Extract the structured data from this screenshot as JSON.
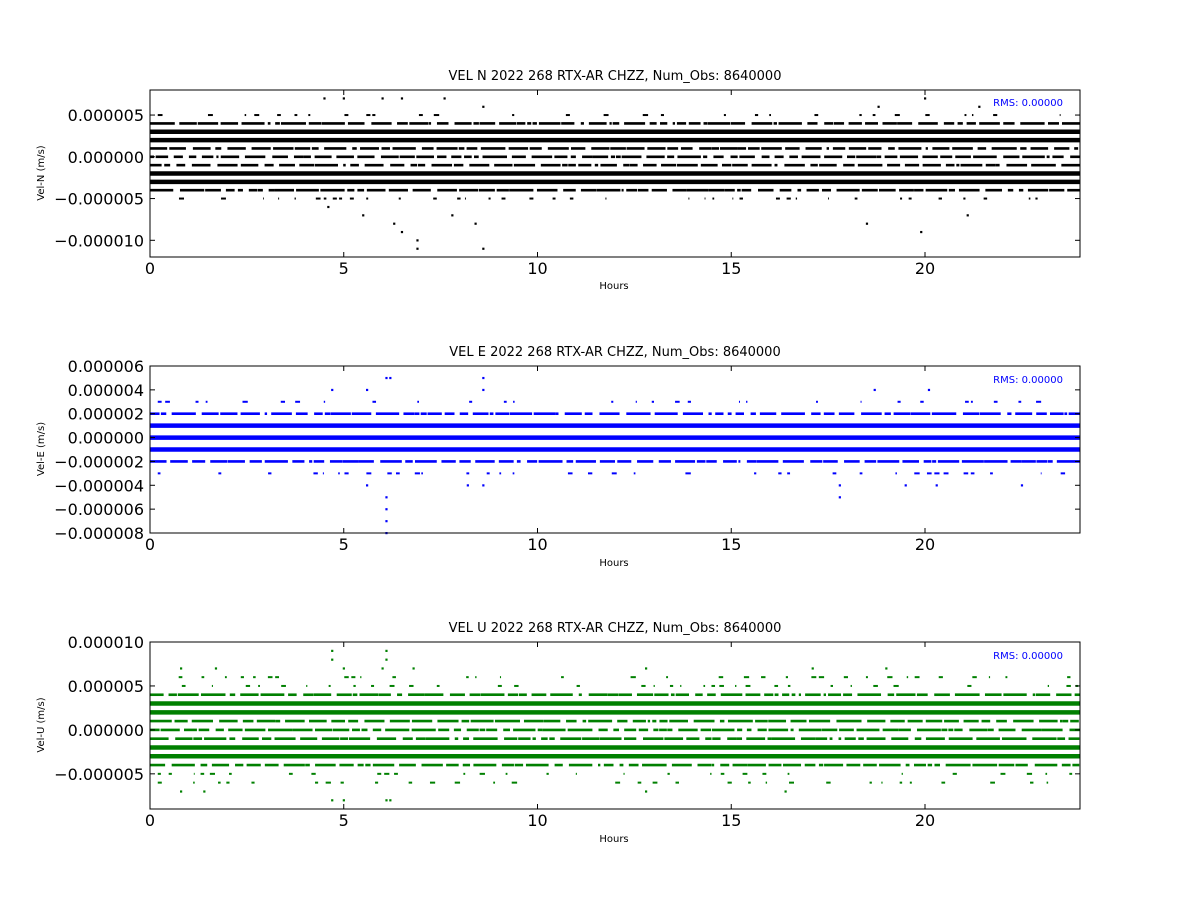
{
  "chart_data": [
    {
      "type": "scatter",
      "title": "VEL N 2022 268 RTX-AR  CHZZ, Num_Obs: 8640000",
      "xlabel": "Hours",
      "ylabel": "Vel-N (m/s)",
      "xlim": [
        0,
        24
      ],
      "ylim": [
        -1.2e-05,
        8e-06
      ],
      "xticks": [
        0,
        5,
        10,
        15,
        20
      ],
      "xtick_labels": [
        "0",
        "5",
        "10",
        "15",
        "20"
      ],
      "yticks": [
        -1e-05,
        -5e-06,
        0,
        5e-06
      ],
      "ytick_labels": [
        "−0.000010",
        "−0.000005",
        "0.000000",
        "0.000005"
      ],
      "rms_label": "RMS:  0.00000",
      "color": "#000000",
      "grid": false,
      "dense_levels": [
        3e-06,
        2e-06,
        -2e-06,
        -3e-06
      ],
      "medium_levels": [
        1e-06,
        0,
        -1e-06,
        4e-06,
        -4e-06
      ],
      "sparse_levels": [
        5e-06,
        -5e-06
      ],
      "outliers": [
        {
          "x": 4.5,
          "y": 7e-06
        },
        {
          "x": 5.0,
          "y": 7e-06
        },
        {
          "x": 6.0,
          "y": 7e-06
        },
        {
          "x": 6.5,
          "y": 7e-06
        },
        {
          "x": 7.6,
          "y": 7e-06
        },
        {
          "x": 20.0,
          "y": 7e-06
        },
        {
          "x": 8.6,
          "y": 6e-06
        },
        {
          "x": 18.8,
          "y": 6e-06
        },
        {
          "x": 21.4,
          "y": 6e-06
        },
        {
          "x": 4.6,
          "y": -6e-06
        },
        {
          "x": 5.5,
          "y": -7e-06
        },
        {
          "x": 6.3,
          "y": -8e-06
        },
        {
          "x": 6.5,
          "y": -9e-06
        },
        {
          "x": 6.9,
          "y": -1e-05
        },
        {
          "x": 6.9,
          "y": -1.1e-05
        },
        {
          "x": 8.6,
          "y": -1.1e-05
        },
        {
          "x": 8.4,
          "y": -8e-06
        },
        {
          "x": 18.5,
          "y": -8e-06
        },
        {
          "x": 19.9,
          "y": -9e-06
        },
        {
          "x": 21.1,
          "y": -7e-06
        },
        {
          "x": 7.8,
          "y": -7e-06
        }
      ]
    },
    {
      "type": "scatter",
      "title": "VEL E 2022 268 RTX-AR  CHZZ, Num_Obs: 8640000",
      "xlabel": "Hours",
      "ylabel": "Vel-E (m/s)",
      "xlim": [
        0,
        24
      ],
      "ylim": [
        -8e-06,
        6e-06
      ],
      "xticks": [
        0,
        5,
        10,
        15,
        20
      ],
      "xtick_labels": [
        "0",
        "5",
        "10",
        "15",
        "20"
      ],
      "yticks": [
        -8e-06,
        -6e-06,
        -4e-06,
        -2e-06,
        0,
        2e-06,
        4e-06,
        6e-06
      ],
      "ytick_labels": [
        "−0.000008",
        "−0.000006",
        "−0.000004",
        "−0.000002",
        "0.000000",
        "0.000002",
        "0.000004",
        "0.000006"
      ],
      "rms_label": "RMS:  0.00000",
      "color": "#0000ff",
      "grid": false,
      "dense_levels": [
        1e-06,
        0,
        -1e-06
      ],
      "medium_levels": [
        2e-06,
        -2e-06
      ],
      "sparse_levels": [
        3e-06,
        -3e-06
      ],
      "outliers": [
        {
          "x": 4.7,
          "y": 4e-06
        },
        {
          "x": 5.6,
          "y": 4e-06
        },
        {
          "x": 6.1,
          "y": 5e-06
        },
        {
          "x": 6.2,
          "y": 5e-06
        },
        {
          "x": 8.6,
          "y": 5e-06
        },
        {
          "x": 8.6,
          "y": 4e-06
        },
        {
          "x": 18.7,
          "y": 4e-06
        },
        {
          "x": 20.1,
          "y": 4e-06
        },
        {
          "x": 6.1,
          "y": -5e-06
        },
        {
          "x": 6.1,
          "y": -6e-06
        },
        {
          "x": 6.1,
          "y": -7e-06
        },
        {
          "x": 6.1,
          "y": -8e-06
        },
        {
          "x": 5.6,
          "y": -4e-06
        },
        {
          "x": 8.2,
          "y": -4e-06
        },
        {
          "x": 8.6,
          "y": -4e-06
        },
        {
          "x": 17.8,
          "y": -4e-06
        },
        {
          "x": 17.8,
          "y": -5e-06
        },
        {
          "x": 19.5,
          "y": -4e-06
        },
        {
          "x": 20.3,
          "y": -4e-06
        },
        {
          "x": 22.5,
          "y": -4e-06
        }
      ]
    },
    {
      "type": "scatter",
      "title": "VEL U 2022 268 RTX-AR  CHZZ, Num_Obs: 8640000",
      "xlabel": "Hours",
      "ylabel": "Vel-U (m/s)",
      "xlim": [
        0,
        24
      ],
      "ylim": [
        -9e-06,
        1e-05
      ],
      "xticks": [
        0,
        5,
        10,
        15,
        20
      ],
      "xtick_labels": [
        "0",
        "5",
        "10",
        "15",
        "20"
      ],
      "yticks": [
        -5e-06,
        0,
        5e-06,
        1e-05
      ],
      "ytick_labels": [
        "−0.000005",
        "0.000000",
        "0.000005",
        "0.000010"
      ],
      "rms_label": "RMS:  0.00000",
      "color": "#008000",
      "grid": false,
      "dense_levels": [
        3e-06,
        2e-06,
        -2e-06,
        -3e-06
      ],
      "medium_levels": [
        1e-06,
        0,
        -1e-06,
        4e-06,
        -4e-06
      ],
      "sparse_levels": [
        5e-06,
        -5e-06,
        6e-06,
        -6e-06
      ],
      "outliers": [
        {
          "x": 4.7,
          "y": 9e-06
        },
        {
          "x": 6.1,
          "y": 9e-06
        },
        {
          "x": 4.7,
          "y": 8e-06
        },
        {
          "x": 6.1,
          "y": 8e-06
        },
        {
          "x": 5.0,
          "y": 7e-06
        },
        {
          "x": 6.0,
          "y": 7e-06
        },
        {
          "x": 6.8,
          "y": 7e-06
        },
        {
          "x": 17.1,
          "y": 7e-06
        },
        {
          "x": 19.0,
          "y": 7e-06
        },
        {
          "x": 1.7,
          "y": 7e-06
        },
        {
          "x": 0.8,
          "y": 7e-06
        },
        {
          "x": 12.8,
          "y": 7e-06
        },
        {
          "x": 4.7,
          "y": -8e-06
        },
        {
          "x": 5.0,
          "y": -8e-06
        },
        {
          "x": 6.1,
          "y": -8e-06
        },
        {
          "x": 6.2,
          "y": -8e-06
        },
        {
          "x": 1.4,
          "y": -7e-06
        },
        {
          "x": 0.8,
          "y": -7e-06
        },
        {
          "x": 12.8,
          "y": -7e-06
        },
        {
          "x": 16.4,
          "y": -7e-06
        }
      ]
    }
  ]
}
